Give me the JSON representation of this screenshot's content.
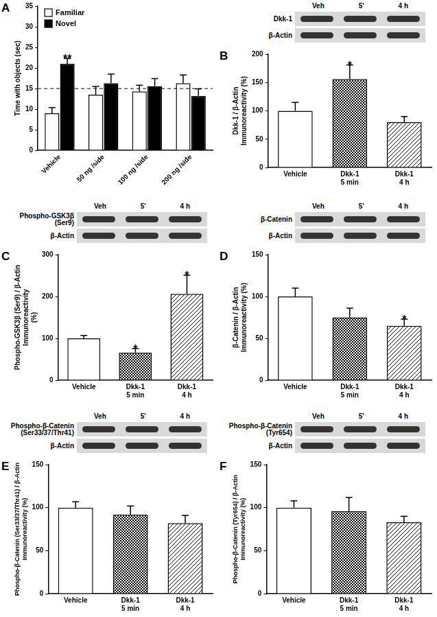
{
  "chart_data": [
    {
      "panel": "A",
      "type": "bar",
      "categories": [
        "Vehicle",
        "50 ng /side",
        "100 ng /side",
        "200 ng /side"
      ],
      "series": [
        {
          "name": "Familiar",
          "color": "#ffffff",
          "values": [
            9,
            13.5,
            14.3,
            16.3
          ],
          "errors": [
            1.4,
            2,
            1.5,
            2
          ]
        },
        {
          "name": "Novel",
          "color": "#000000",
          "values": [
            21,
            16.3,
            15.6,
            13.2
          ],
          "errors": [
            1.3,
            2.2,
            1.8,
            1.7
          ],
          "annotations": [
            "**",
            null,
            null,
            null
          ]
        }
      ],
      "y_label": "Time with objects (sec)",
      "ylim": [
        0,
        35
      ],
      "yticks": [
        0,
        5,
        10,
        15,
        20,
        25,
        30,
        35
      ],
      "reference_line": 15,
      "legend": "upper left",
      "grid": false
    },
    {
      "panel": "B",
      "type": "bar",
      "blot": {
        "lanes": [
          "Veh",
          "5'",
          "4 h"
        ],
        "rows": [
          "Dkk-1",
          "β-Actin"
        ]
      },
      "categories": [
        "Vehicle",
        "Dkk-1 5 min",
        "Dkk-1 4 h"
      ],
      "values": [
        100,
        156,
        80
      ],
      "errors": [
        15,
        25,
        10
      ],
      "annotations": [
        null,
        "*",
        null
      ],
      "colors": [
        "#ffffff",
        "#ffffff",
        "#ffffff"
      ],
      "y_label": [
        "Dkk-1 / β-Actin",
        "Immunoreactivity (%)"
      ],
      "ylim": [
        0,
        200
      ],
      "yticks": [
        0,
        50,
        100,
        150,
        200
      ],
      "grid": false
    },
    {
      "panel": "C",
      "type": "bar",
      "blot": {
        "lanes": [
          "Veh",
          "5'",
          "4 h"
        ],
        "rows": [
          [
            "Phospho-GSK3β",
            "(Ser9)"
          ],
          "β-Actin"
        ]
      },
      "categories": [
        "Vehicle",
        "Dkk-1 5 min",
        "Dkk-1 4 h"
      ],
      "values": [
        100,
        66,
        206
      ],
      "errors": [
        7,
        10,
        45
      ],
      "annotations": [
        null,
        "*",
        "*"
      ],
      "colors": [
        "#ffffff",
        "#ffffff",
        "#ffffff"
      ],
      "y_label": [
        "Phospho-GSK3β (Ser9) / β-Actin",
        "Immunoreactivity",
        "(%)"
      ],
      "ylim": [
        0,
        300
      ],
      "yticks": [
        0,
        100,
        200,
        300
      ],
      "grid": false
    },
    {
      "panel": "D",
      "type": "bar",
      "blot": {
        "lanes": [
          "Veh",
          "5'",
          "4 h"
        ],
        "rows": [
          "β-Catenin",
          "β-Actin"
        ]
      },
      "categories": [
        "Vehicle",
        "Dkk-1 5 min",
        "Dkk-1 4 h"
      ],
      "values": [
        100,
        75,
        65
      ],
      "errors": [
        10,
        11,
        8
      ],
      "annotations": [
        null,
        null,
        "*"
      ],
      "colors": [
        "#ffffff",
        "#ffffff",
        "#ffffff"
      ],
      "y_label": [
        "β-Catenin / β-Actin",
        "Immunoreactivity (%)"
      ],
      "ylim": [
        0,
        150
      ],
      "yticks": [
        0,
        50,
        100,
        150
      ],
      "grid": false
    },
    {
      "panel": "E",
      "type": "bar",
      "blot": {
        "lanes": [
          "Veh",
          "5'",
          "4 h"
        ],
        "rows": [
          [
            "Phospho-β-Catenin",
            "(Ser33/37/Thr41)"
          ],
          "β-Actin"
        ]
      },
      "categories": [
        "Vehicle",
        "Dkk-1 5 min",
        "Dkk-1 4 h"
      ],
      "values": [
        100,
        92,
        82
      ],
      "errors": [
        7,
        10,
        9
      ],
      "colors": [
        "#ffffff",
        "#ffffff",
        "#ffffff"
      ],
      "y_label": [
        "Phospho-β-Catenin (Ser33/37/Thr41) / β-Actin",
        "Immunoreactivity (%)"
      ],
      "ylim": [
        0,
        150
      ],
      "yticks": [
        0,
        50,
        100,
        150
      ],
      "grid": false
    },
    {
      "panel": "F",
      "type": "bar",
      "blot": {
        "lanes": [
          "Veh",
          "5'",
          "4 h"
        ],
        "rows": [
          [
            "Phospho-β-Catenin",
            "(Tyr654)"
          ],
          "β-Actin"
        ]
      },
      "categories": [
        "Vehicle",
        "Dkk-1 5 min",
        "Dkk-1 4 h"
      ],
      "values": [
        100,
        96,
        83
      ],
      "errors": [
        8,
        16,
        7
      ],
      "colors": [
        "#ffffff",
        "#ffffff",
        "#ffffff"
      ],
      "y_label": [
        "Phospho-β-Catenin (Tyr654) / β-Actin",
        "Immunoreactivity (%)"
      ],
      "ylim": [
        0,
        150
      ],
      "yticks": [
        0,
        50,
        100,
        150
      ],
      "grid": false
    }
  ]
}
